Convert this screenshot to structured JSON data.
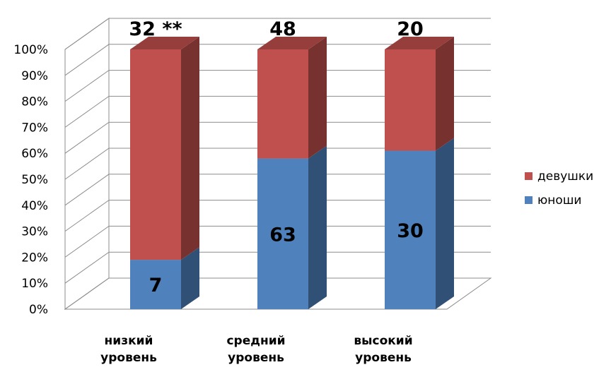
{
  "chart_data": {
    "type": "bar",
    "stacked": true,
    "percent_stacked": true,
    "three_d": true,
    "categories": [
      "низкий уровень",
      "средний уровень",
      "высокий уровень"
    ],
    "series": [
      {
        "name": "юноши",
        "color": "#4F81BD",
        "values": [
          19,
          58,
          61
        ],
        "data_labels": [
          "7",
          "63",
          "30"
        ]
      },
      {
        "name": "девушки",
        "color": "#C0504D",
        "values": [
          81,
          42,
          39
        ],
        "data_labels": [
          "32 **",
          "48",
          "20"
        ]
      }
    ],
    "yticks": [
      "0%",
      "10%",
      "20%",
      "30%",
      "40%",
      "50%",
      "60%",
      "70%",
      "80%",
      "90%",
      "100%"
    ],
    "ylim": [
      0,
      100
    ],
    "grid": true,
    "legend": {
      "placement": "right",
      "entries": [
        "девушки",
        "юноши"
      ]
    },
    "title": "",
    "xlabel": "",
    "ylabel": ""
  }
}
